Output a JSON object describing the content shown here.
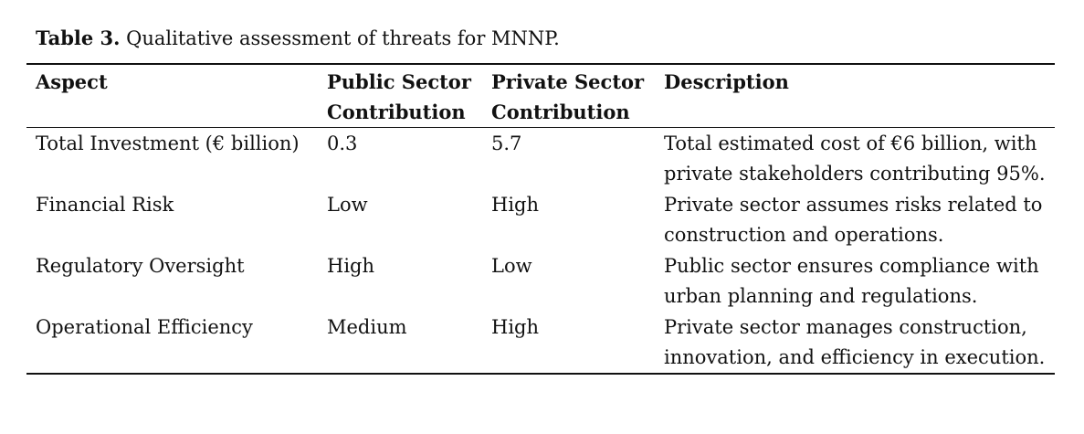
{
  "caption": {
    "label": "Table 3.",
    "text": "Qualitative assessment of threats for MNNP."
  },
  "table": {
    "headers": [
      "Aspect",
      "Public Sector Contribution",
      "Private Sector Contribution",
      "Description"
    ],
    "rows": [
      [
        "Total Investment (€ billion)",
        "0.3",
        "5.7",
        "Total estimated cost of €6 billion, with private stakeholders contributing 95%."
      ],
      [
        "Financial Risk",
        "Low",
        "High",
        "Private sector assumes risks related to construction and operations."
      ],
      [
        "Regulatory Oversight",
        "High",
        "Low",
        "Public sector ensures compliance with urban planning and regulations."
      ],
      [
        "Operational Efficiency",
        "Medium",
        "High",
        "Private sector manages construction, innovation, and efficiency in execution."
      ]
    ]
  }
}
